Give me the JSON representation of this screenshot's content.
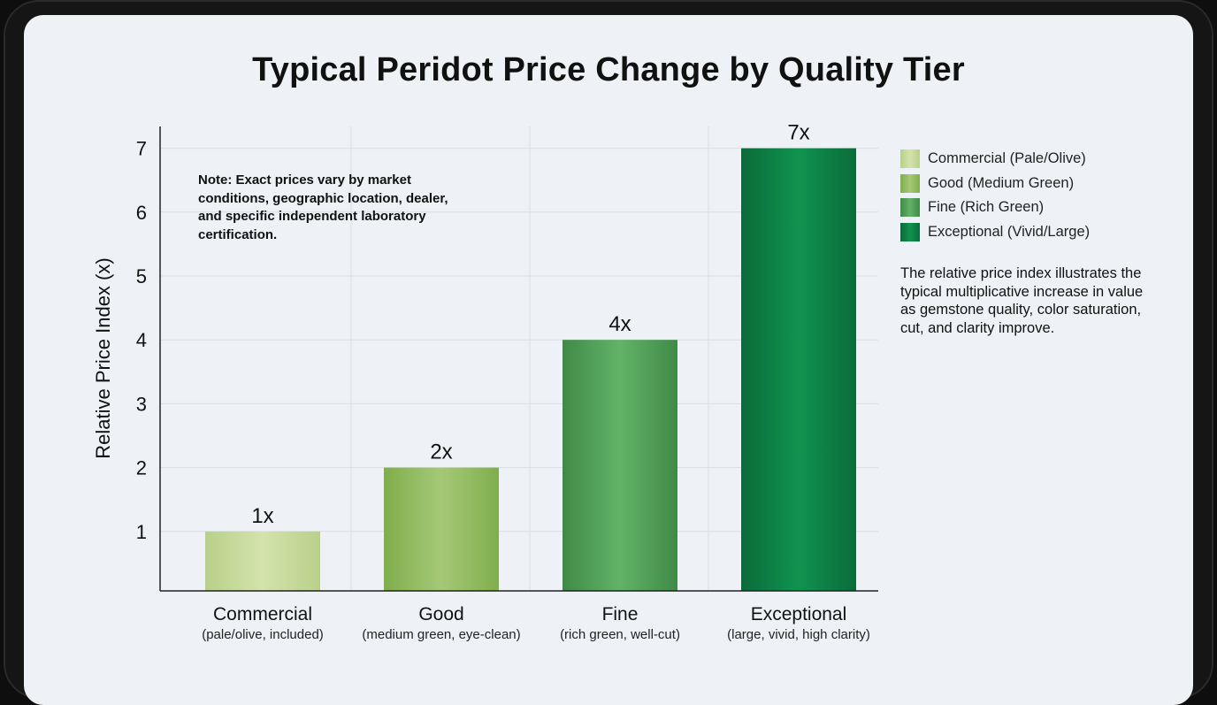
{
  "chart_data": {
    "type": "bar",
    "title": "Typical Peridot Price Change by Quality Tier",
    "ylabel": "Relative Price Index (x)",
    "xlabel": "",
    "ylim": [
      0,
      7.3
    ],
    "yticks": [
      1,
      2,
      3,
      4,
      5,
      6,
      7
    ],
    "grid": true,
    "categories": [
      "Commercial",
      "Good",
      "Fine",
      "Exceptional"
    ],
    "category_sublabels": [
      "(pale/olive, included)",
      "(medium green, eye-clean)",
      "(rich green, well-cut)",
      "(large, vivid, high clarity)"
    ],
    "values": [
      1,
      2,
      4,
      7
    ],
    "data_labels": [
      "1x",
      "2x",
      "4x",
      "7x"
    ],
    "colors": [
      [
        "#b9d08a",
        "#d3e3ac"
      ],
      [
        "#7fae4c",
        "#a5c877"
      ],
      [
        "#3f8a47",
        "#62b368"
      ],
      [
        "#0b6b3a",
        "#10934f"
      ]
    ],
    "legend": {
      "position": "right",
      "entries": [
        "Commercial (Pale/Olive)",
        "Good (Medium Green)",
        "Fine (Rich Green)",
        "Exceptional (Vivid/Large)"
      ]
    },
    "annotations": {
      "note": "Note: Exact prices vary by market conditions, geographic location, dealer, and specific independent laboratory certification.",
      "description": "The relative price index illustrates the typical multiplicative increase in value as gemstone quality, color saturation, cut, and clarity improve."
    }
  }
}
